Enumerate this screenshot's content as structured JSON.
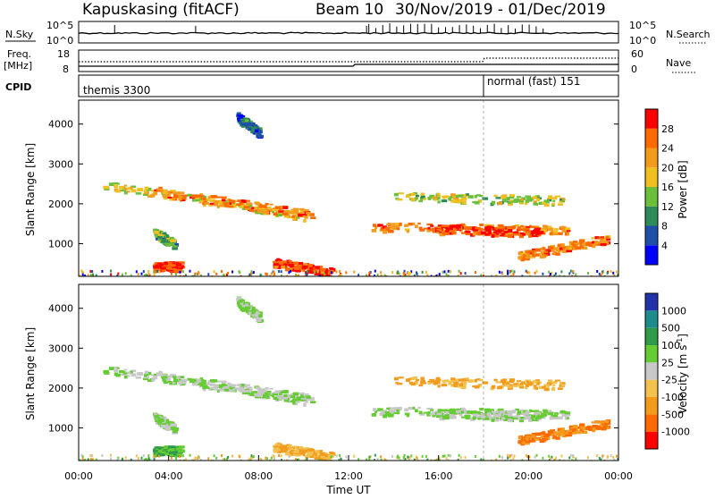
{
  "header": {
    "radar": "Kapuskasing (fitACF)",
    "beam": "Beam 10",
    "dates": "30/Nov/2019 - 01/Dec/2019"
  },
  "nsky_panel": {
    "left_label": "N.Sky",
    "right_label": "N.Search",
    "left_ticks": [
      "10^5",
      "10^0"
    ],
    "right_ticks": [
      "10^5",
      "10^0"
    ]
  },
  "freq_panel": {
    "left_label_1": "Freq.",
    "left_label_2": "[MHz]",
    "right_label": "Nave",
    "left_ticks": [
      "18",
      "8"
    ],
    "right_ticks": [
      "60",
      "0"
    ]
  },
  "cpid_panel": {
    "label": "CPID",
    "segments": [
      {
        "text": "themis 3300",
        "start_hour": 0
      },
      {
        "text": "normal (fast) 151",
        "start_hour": 18
      }
    ]
  },
  "power_panel": {
    "ylabel": "Slant Range [km]",
    "yticks": [
      "1000",
      "2000",
      "3000",
      "4000"
    ],
    "colorbar_label": "Power [dB]",
    "colorbar_ticks": [
      "4",
      "8",
      "12",
      "16",
      "20",
      "24",
      "28"
    ],
    "colors": [
      "#0000ff",
      "#1f4fa8",
      "#2e8b57",
      "#6cbf3a",
      "#f0c020",
      "#f39b1c",
      "#ff6a00",
      "#ff0000"
    ]
  },
  "velocity_panel": {
    "ylabel": "Slant Range [km]",
    "yticks": [
      "1000",
      "2000",
      "3000",
      "4000"
    ],
    "colorbar_label": "Velocity [m s",
    "colorbar_sup": "-1",
    "colorbar_close": "]",
    "colorbar_ticks": [
      "1000",
      "500",
      "100",
      "25",
      "-25",
      "-100",
      "-500",
      "-1000"
    ],
    "colors": [
      "#2233aa",
      "#1e8c8c",
      "#2e9a4a",
      "#66cc33",
      "#c8c8c8",
      "#f2c14e",
      "#f39b1c",
      "#ff6a00",
      "#ff0000"
    ]
  },
  "xaxis": {
    "label": "Time UT",
    "ticks": [
      "00:00",
      "04:00",
      "08:00",
      "12:00",
      "16:00",
      "20:00",
      "00:00"
    ]
  },
  "chart_data": {
    "type": "heatmap",
    "title": "Kapuskasing (fitACF) Beam 10 30/Nov/2019 - 01/Dec/2019",
    "x_unit": "hours UT",
    "xlim": [
      0,
      24
    ],
    "y_unit": "km",
    "ylim": [
      180,
      4600
    ],
    "regions": [
      {
        "name": "upper_band",
        "t_start": 1.0,
        "t_end": 10.2,
        "r_start": 2500,
        "r_end": 1700,
        "power_db": 18,
        "velocity": 25
      },
      {
        "name": "upper_band_lower_edge",
        "t_start": 3.2,
        "t_end": 10.3,
        "r_start": 2350,
        "r_end": 1750,
        "power_db": 24,
        "velocity": 25
      },
      {
        "name": "mid_band",
        "t_start": 13.0,
        "t_end": 21.8,
        "r_start": 1450,
        "r_end": 1350,
        "power_db": 24,
        "velocity": 25
      },
      {
        "name": "mid_band_core",
        "t_start": 15.5,
        "t_end": 20.5,
        "r_start": 1380,
        "r_end": 1300,
        "power_db": 28,
        "velocity": 25
      },
      {
        "name": "near_echo_morning",
        "t_start": 3.3,
        "t_end": 4.5,
        "r_start": 450,
        "r_end": 450,
        "power_db": 28,
        "velocity": 100
      },
      {
        "name": "near_echo_noon",
        "t_start": 8.6,
        "t_end": 11.2,
        "r_start": 550,
        "r_end": 300,
        "power_db": 28,
        "velocity": -100
      },
      {
        "name": "late_echo",
        "t_start": 19.5,
        "t_end": 23.5,
        "r_start": 700,
        "r_end": 1150,
        "power_db": 24,
        "velocity": -500
      },
      {
        "name": "upper_late",
        "t_start": 14.0,
        "t_end": 21.5,
        "r_start": 2200,
        "r_end": 2100,
        "power_db": 16,
        "velocity": -100
      },
      {
        "name": "patch_04h",
        "t_start": 3.3,
        "t_end": 4.2,
        "r_start": 1300,
        "r_end": 1000,
        "power_db": 12,
        "velocity": 25
      },
      {
        "name": "scatter_high",
        "t_start": 7.0,
        "t_end": 8.0,
        "r_start": 4200,
        "r_end": 3800,
        "power_db": 8,
        "velocity": 25
      }
    ]
  }
}
